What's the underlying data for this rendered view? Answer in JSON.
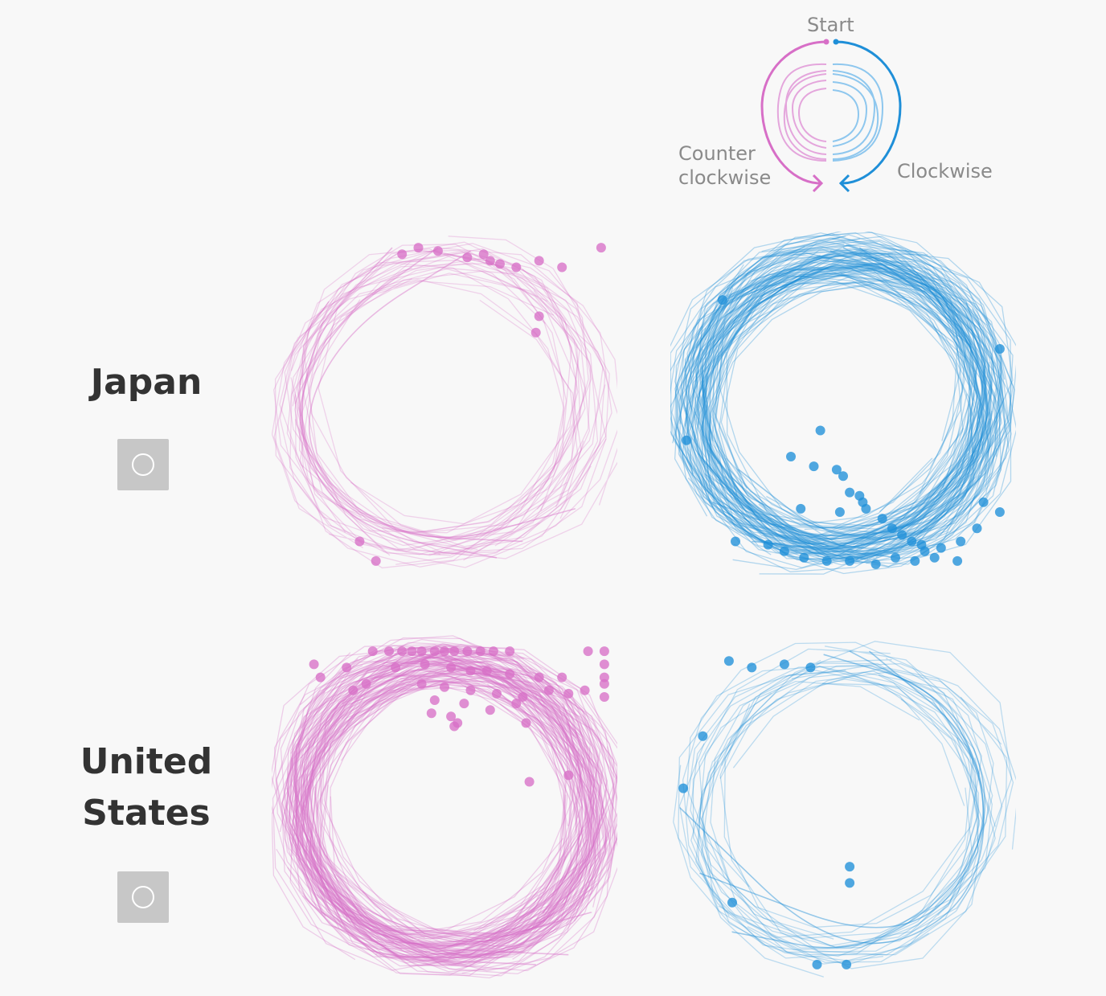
{
  "legend": {
    "start_label": "Start",
    "counterclockwise_label": "Counter\nclockwise",
    "clockwise_label": "Clockwise"
  },
  "rows": [
    {
      "label": "Japan",
      "button_icon": "circle-icon"
    },
    {
      "label": "United\nStates",
      "button_icon": "circle-icon"
    }
  ],
  "colors": {
    "counterclockwise": "#d76fc7",
    "clockwise": "#1f8fd8",
    "legend_text": "#8a8a8a",
    "row_label": "#333333",
    "button_bg": "#c7c7c7"
  },
  "chart_data": [
    {
      "type": "line",
      "country": "Japan",
      "direction": "Counter clockwise",
      "title": "",
      "series": [
        {
          "values": [
            {
              "x": 0.48,
              "y": 0.98
            },
            {
              "x": 0.16,
              "y": 0.75
            },
            {
              "x": 0.02,
              "y": 0.45
            },
            {
              "x": 0.2,
              "y": 0.12
            },
            {
              "x": 0.66,
              "y": 0.03
            }
          ]
        },
        {
          "values": [
            {
              "x": 0.58,
              "y": 0.97
            },
            {
              "x": 0.18,
              "y": 0.72
            },
            {
              "x": 0.04,
              "y": 0.38
            },
            {
              "x": 0.3,
              "y": 0.1
            },
            {
              "x": 0.74,
              "y": 0.08
            }
          ]
        },
        {
          "values": [
            {
              "x": 0.34,
              "y": 0.98
            },
            {
              "x": 0.08,
              "y": 0.7
            },
            {
              "x": 0.05,
              "y": 0.3
            },
            {
              "x": 0.42,
              "y": 0.05
            },
            {
              "x": 0.9,
              "y": 0.18
            }
          ]
        }
      ],
      "endpoints": [
        {
          "x": 0.42,
          "y": 0.98
        },
        {
          "x": 0.37,
          "y": 0.96
        },
        {
          "x": 0.48,
          "y": 0.97
        },
        {
          "x": 0.57,
          "y": 0.95
        },
        {
          "x": 0.62,
          "y": 0.96
        },
        {
          "x": 0.64,
          "y": 0.94
        },
        {
          "x": 0.67,
          "y": 0.93
        },
        {
          "x": 0.72,
          "y": 0.92
        },
        {
          "x": 0.79,
          "y": 0.94
        },
        {
          "x": 0.86,
          "y": 0.92
        },
        {
          "x": 0.98,
          "y": 0.98
        },
        {
          "x": 0.79,
          "y": 0.77
        },
        {
          "x": 0.78,
          "y": 0.72
        },
        {
          "x": 0.24,
          "y": 0.08
        },
        {
          "x": 0.29,
          "y": 0.02
        }
      ]
    },
    {
      "type": "line",
      "country": "Japan",
      "direction": "Clockwise",
      "title": "",
      "series": [
        {
          "values": [
            {
              "x": 0.5,
              "y": 0.98
            },
            {
              "x": 0.88,
              "y": 0.78
            },
            {
              "x": 0.98,
              "y": 0.38
            },
            {
              "x": 0.62,
              "y": 0.04
            },
            {
              "x": 0.22,
              "y": 0.08
            }
          ]
        },
        {
          "values": [
            {
              "x": 0.46,
              "y": 0.97
            },
            {
              "x": 0.9,
              "y": 0.82
            },
            {
              "x": 0.96,
              "y": 0.4
            },
            {
              "x": 0.55,
              "y": 0.03
            },
            {
              "x": 0.1,
              "y": 0.2
            }
          ]
        },
        {
          "values": [
            {
              "x": 0.55,
              "y": 0.98
            },
            {
              "x": 0.94,
              "y": 0.7
            },
            {
              "x": 0.92,
              "y": 0.22
            },
            {
              "x": 0.5,
              "y": 0.05
            },
            {
              "x": 0.18,
              "y": 0.3
            }
          ]
        }
      ],
      "endpoints": [
        {
          "x": 0.13,
          "y": 0.82
        },
        {
          "x": 0.98,
          "y": 0.67
        },
        {
          "x": 0.02,
          "y": 0.39
        },
        {
          "x": 0.43,
          "y": 0.42
        },
        {
          "x": 0.34,
          "y": 0.34
        },
        {
          "x": 0.41,
          "y": 0.31
        },
        {
          "x": 0.48,
          "y": 0.3
        },
        {
          "x": 0.5,
          "y": 0.28
        },
        {
          "x": 0.52,
          "y": 0.23
        },
        {
          "x": 0.55,
          "y": 0.22
        },
        {
          "x": 0.56,
          "y": 0.2
        },
        {
          "x": 0.57,
          "y": 0.18
        },
        {
          "x": 0.37,
          "y": 0.18
        },
        {
          "x": 0.49,
          "y": 0.17
        },
        {
          "x": 0.62,
          "y": 0.15
        },
        {
          "x": 0.65,
          "y": 0.12
        },
        {
          "x": 0.68,
          "y": 0.1
        },
        {
          "x": 0.71,
          "y": 0.08
        },
        {
          "x": 0.74,
          "y": 0.07
        },
        {
          "x": 0.75,
          "y": 0.05
        },
        {
          "x": 0.8,
          "y": 0.06
        },
        {
          "x": 0.86,
          "y": 0.08
        },
        {
          "x": 0.91,
          "y": 0.12
        },
        {
          "x": 0.98,
          "y": 0.17
        },
        {
          "x": 0.17,
          "y": 0.08
        },
        {
          "x": 0.27,
          "y": 0.07
        },
        {
          "x": 0.32,
          "y": 0.05
        },
        {
          "x": 0.38,
          "y": 0.03
        },
        {
          "x": 0.45,
          "y": 0.02
        },
        {
          "x": 0.52,
          "y": 0.02
        },
        {
          "x": 0.6,
          "y": 0.01
        },
        {
          "x": 0.66,
          "y": 0.03
        },
        {
          "x": 0.72,
          "y": 0.02
        },
        {
          "x": 0.78,
          "y": 0.03
        },
        {
          "x": 0.85,
          "y": 0.02
        },
        {
          "x": 0.93,
          "y": 0.2
        }
      ]
    },
    {
      "type": "line",
      "country": "United States",
      "direction": "Counter clockwise",
      "title": "",
      "series": [
        {
          "values": [
            {
              "x": 0.5,
              "y": 0.98
            },
            {
              "x": 0.12,
              "y": 0.82
            },
            {
              "x": 0.03,
              "y": 0.48
            },
            {
              "x": 0.22,
              "y": 0.08
            },
            {
              "x": 0.88,
              "y": 0.05
            }
          ]
        },
        {
          "values": [
            {
              "x": 0.36,
              "y": 0.98
            },
            {
              "x": 0.08,
              "y": 0.74
            },
            {
              "x": 0.02,
              "y": 0.3
            },
            {
              "x": 0.4,
              "y": 0.03
            },
            {
              "x": 0.95,
              "y": 0.18
            }
          ]
        },
        {
          "values": [
            {
              "x": 0.62,
              "y": 0.98
            },
            {
              "x": 0.2,
              "y": 0.86
            },
            {
              "x": 0.04,
              "y": 0.52
            },
            {
              "x": 0.3,
              "y": 0.04
            },
            {
              "x": 0.78,
              "y": 0.02
            }
          ]
        }
      ],
      "endpoints": [
        {
          "x": 0.28,
          "y": 0.98
        },
        {
          "x": 0.33,
          "y": 0.98
        },
        {
          "x": 0.37,
          "y": 0.98
        },
        {
          "x": 0.4,
          "y": 0.98
        },
        {
          "x": 0.43,
          "y": 0.98
        },
        {
          "x": 0.47,
          "y": 0.98
        },
        {
          "x": 0.5,
          "y": 0.98
        },
        {
          "x": 0.53,
          "y": 0.98
        },
        {
          "x": 0.57,
          "y": 0.98
        },
        {
          "x": 0.61,
          "y": 0.98
        },
        {
          "x": 0.65,
          "y": 0.98
        },
        {
          "x": 0.7,
          "y": 0.98
        },
        {
          "x": 0.94,
          "y": 0.98
        },
        {
          "x": 0.99,
          "y": 0.98
        },
        {
          "x": 0.1,
          "y": 0.94
        },
        {
          "x": 0.2,
          "y": 0.93
        },
        {
          "x": 0.35,
          "y": 0.93
        },
        {
          "x": 0.44,
          "y": 0.94
        },
        {
          "x": 0.52,
          "y": 0.93
        },
        {
          "x": 0.58,
          "y": 0.92
        },
        {
          "x": 0.63,
          "y": 0.92
        },
        {
          "x": 0.7,
          "y": 0.91
        },
        {
          "x": 0.79,
          "y": 0.9
        },
        {
          "x": 0.86,
          "y": 0.9
        },
        {
          "x": 0.99,
          "y": 0.94
        },
        {
          "x": 0.99,
          "y": 0.9
        },
        {
          "x": 0.99,
          "y": 0.88
        },
        {
          "x": 0.12,
          "y": 0.9
        },
        {
          "x": 0.26,
          "y": 0.88
        },
        {
          "x": 0.43,
          "y": 0.88
        },
        {
          "x": 0.5,
          "y": 0.87
        },
        {
          "x": 0.58,
          "y": 0.86
        },
        {
          "x": 0.66,
          "y": 0.85
        },
        {
          "x": 0.74,
          "y": 0.84
        },
        {
          "x": 0.82,
          "y": 0.86
        },
        {
          "x": 0.88,
          "y": 0.85
        },
        {
          "x": 0.93,
          "y": 0.86
        },
        {
          "x": 0.99,
          "y": 0.84
        },
        {
          "x": 0.22,
          "y": 0.86
        },
        {
          "x": 0.47,
          "y": 0.83
        },
        {
          "x": 0.56,
          "y": 0.82
        },
        {
          "x": 0.64,
          "y": 0.8
        },
        {
          "x": 0.72,
          "y": 0.82
        },
        {
          "x": 0.46,
          "y": 0.79
        },
        {
          "x": 0.52,
          "y": 0.78
        },
        {
          "x": 0.54,
          "y": 0.76
        },
        {
          "x": 0.53,
          "y": 0.75
        },
        {
          "x": 0.75,
          "y": 0.76
        },
        {
          "x": 0.76,
          "y": 0.58
        },
        {
          "x": 0.88,
          "y": 0.6
        }
      ]
    },
    {
      "type": "line",
      "country": "United States",
      "direction": "Clockwise",
      "title": "",
      "series": [
        {
          "values": [
            {
              "x": 0.52,
              "y": 0.98
            },
            {
              "x": 0.9,
              "y": 0.78
            },
            {
              "x": 0.96,
              "y": 0.36
            },
            {
              "x": 0.58,
              "y": 0.04
            },
            {
              "x": 0.16,
              "y": 0.12
            }
          ]
        },
        {
          "values": [
            {
              "x": 0.44,
              "y": 0.97
            },
            {
              "x": 0.82,
              "y": 0.86
            },
            {
              "x": 0.98,
              "y": 0.44
            },
            {
              "x": 0.7,
              "y": 0.06
            },
            {
              "x": 0.06,
              "y": 0.3
            }
          ]
        },
        {
          "values": [
            {
              "x": 0.58,
              "y": 0.98
            },
            {
              "x": 0.94,
              "y": 0.68
            },
            {
              "x": 0.92,
              "y": 0.2
            },
            {
              "x": 0.5,
              "y": 0.02
            },
            {
              "x": 0.0,
              "y": 0.5
            }
          ]
        }
      ],
      "endpoints": [
        {
          "x": 0.15,
          "y": 0.95
        },
        {
          "x": 0.22,
          "y": 0.93
        },
        {
          "x": 0.32,
          "y": 0.94
        },
        {
          "x": 0.4,
          "y": 0.93
        },
        {
          "x": 0.07,
          "y": 0.72
        },
        {
          "x": 0.01,
          "y": 0.56
        },
        {
          "x": 0.52,
          "y": 0.32
        },
        {
          "x": 0.52,
          "y": 0.27
        },
        {
          "x": 0.16,
          "y": 0.21
        },
        {
          "x": 0.42,
          "y": 0.02
        },
        {
          "x": 0.51,
          "y": 0.02
        }
      ]
    }
  ]
}
